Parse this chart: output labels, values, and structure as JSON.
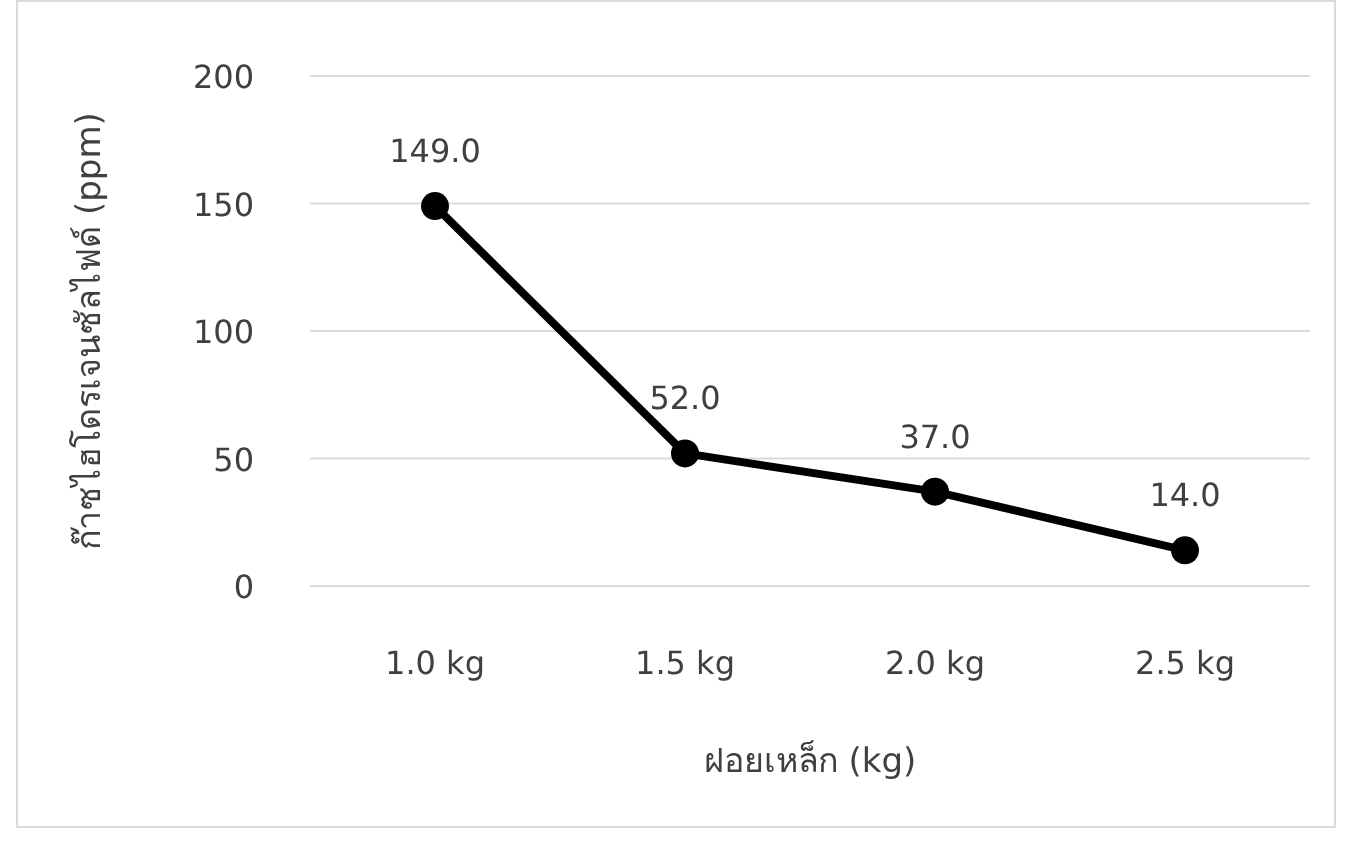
{
  "chart_data": {
    "type": "line",
    "xlabel": "ฝอยเหล็ก (kg)",
    "ylabel": "ก๊าซไฮโดรเจนซัลไฟด์ (ppm)",
    "categories": [
      "1.0 kg",
      "1.5 kg",
      "2.0 kg",
      "2.5 kg"
    ],
    "series": [
      {
        "color": "#000000",
        "values": [
          149,
          52,
          37,
          14
        ],
        "value_labels": [
          "149.0",
          "52.0",
          "37.0",
          "14.0"
        ]
      }
    ],
    "ylim": [
      0,
      200
    ],
    "yticks": [
      0,
      50,
      100,
      150,
      200
    ],
    "grid": "y",
    "marker": "circle",
    "line_style": "solid"
  }
}
